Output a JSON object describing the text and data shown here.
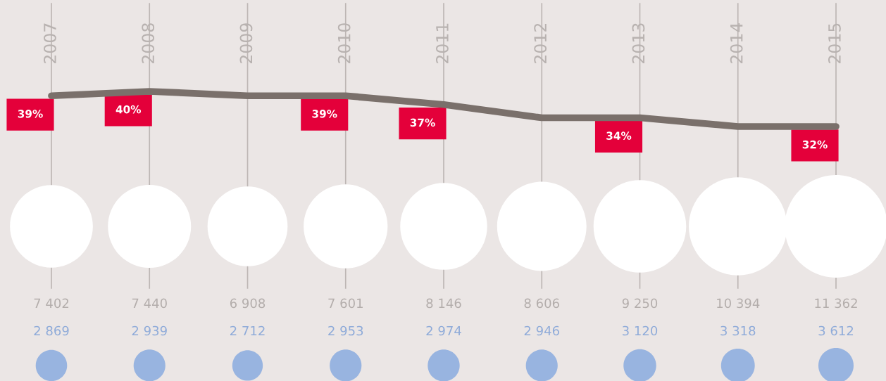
{
  "chart_data": [
    {
      "type": "line",
      "categories": [
        "2007",
        "2008",
        "2009",
        "2010",
        "2011",
        "2012",
        "2013",
        "2014",
        "2015"
      ],
      "values": [
        39,
        40,
        39,
        39,
        37,
        34,
        34,
        32,
        32
      ],
      "value_labels": [
        "39%",
        "40%",
        null,
        "39%",
        "37%",
        null,
        "34%",
        null,
        "32%"
      ],
      "color": "#7a706b",
      "grid": "x",
      "tick_labels": "x"
    },
    {
      "type": "other",
      "categories": [
        null,
        null,
        null,
        null,
        null,
        null,
        null,
        null,
        null
      ],
      "values": [
        7402,
        7440,
        6908,
        7601,
        8146,
        8606,
        9250,
        10394,
        11362
      ],
      "value_labels": [
        "7 402",
        "7 440",
        "6 908",
        "7 601",
        "8 146",
        "8 606",
        "9 250",
        "10 394",
        "11 362"
      ],
      "color": "#ffffff"
    },
    {
      "type": "other",
      "categories": [
        null,
        null,
        null,
        null,
        null,
        null,
        null,
        null,
        null
      ],
      "values": [
        2869,
        2939,
        2712,
        2953,
        2974,
        2946,
        3120,
        3318,
        3612
      ],
      "value_labels": [
        "2 869",
        "2 939",
        "2 712",
        "2 953",
        "2 974",
        "2 946",
        "3 120",
        "3 318",
        "3 612"
      ],
      "color": "#98b4e0"
    }
  ]
}
